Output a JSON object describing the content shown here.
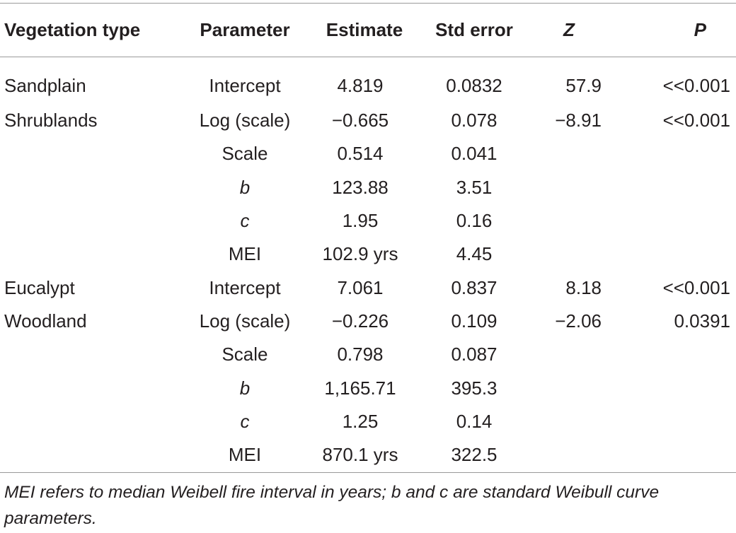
{
  "table": {
    "headers": [
      "Vegetation type",
      "Parameter",
      "Estimate",
      "Std error",
      "Z",
      "P"
    ],
    "rows": [
      [
        "Sandplain",
        "Intercept",
        "4.819",
        "0.0832",
        "57.9",
        "<<0.001"
      ],
      [
        "Shrublands",
        "Log (scale)",
        "−0.665",
        "0.078",
        "−8.91",
        "<<0.001"
      ],
      [
        "",
        "Scale",
        "0.514",
        "0.041",
        "",
        ""
      ],
      [
        "",
        "b",
        "123.88",
        "3.51",
        "",
        ""
      ],
      [
        "",
        "c",
        "1.95",
        "0.16",
        "",
        ""
      ],
      [
        "",
        "MEI",
        "102.9 yrs",
        "4.45",
        "",
        ""
      ],
      [
        "Eucalypt",
        "Intercept",
        "7.061",
        "0.837",
        "8.18",
        "<<0.001"
      ],
      [
        "Woodland",
        "Log (scale)",
        "−0.226",
        "0.109",
        "−2.06",
        "0.0391"
      ],
      [
        "",
        "Scale",
        "0.798",
        "0.087",
        "",
        ""
      ],
      [
        "",
        "b",
        "1,165.71",
        "395.3",
        "",
        ""
      ],
      [
        "",
        "c",
        "1.25",
        "0.14",
        "",
        ""
      ],
      [
        "",
        "MEI",
        "870.1 yrs",
        "322.5",
        "",
        ""
      ]
    ]
  },
  "footnote": "MEI refers to median Weibell fire interval in years; b and c are standard Weibull curve parameters."
}
